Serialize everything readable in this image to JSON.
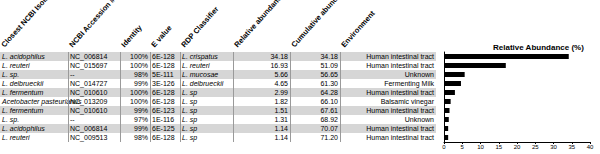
{
  "table": {
    "header": [
      "Closest NCBI Isolate",
      "NCBI Accession #",
      "Identity",
      "E value",
      "RDP Classifier",
      "Relative abundance",
      "Cumulative abundance",
      "Environment"
    ],
    "rows": [
      [
        "L. acidophilus",
        "NC_006814",
        "100%",
        "6E-128",
        "L. crispatus",
        "34.18",
        "34.18",
        "Human intestinal tract"
      ],
      [
        "L. reuteri",
        "NC_015697",
        "100%",
        "6E-128",
        "L. reuteri",
        "16.93",
        "51.09",
        "Human intestinal tract"
      ],
      [
        "L. sp.",
        "--",
        "98%",
        "5E-111",
        "L. mucosae",
        "5.66",
        "56.65",
        "Unknown"
      ],
      [
        "L. delbrueckii",
        "NC_014727",
        "99%",
        "3E-126",
        "L. delbrueckii",
        "4.65",
        "61.30",
        "Fermenting Milk"
      ],
      [
        "L. fermentum",
        "NC_010610",
        "100%",
        "6E-128",
        "L. sp",
        "2.99",
        "64.28",
        "Human intestinal tract"
      ],
      [
        "Acetobacter pasteurianus",
        "NC_013209",
        "100%",
        "6E-128",
        "L. sp",
        "1.82",
        "66.10",
        "Balsamic vinegar"
      ],
      [
        "L. fermentum",
        "NC_010610",
        "99%",
        "6E-123",
        "L. sp",
        "1.51",
        "67.61",
        "Human intestinal tract"
      ],
      [
        "L. sp.",
        "--",
        "97%",
        "1E-116",
        "L. sp",
        "1.31",
        "68.92",
        "Unknown"
      ],
      [
        "L. acidophilus",
        "NC_006814",
        "99%",
        "6E-125",
        "L. sp",
        "1.14",
        "70.07",
        "Human intestinal tract"
      ],
      [
        "L. reuteri",
        "NC_009513",
        "98%",
        "6E-128",
        "L. sp",
        "1.14",
        "71.20",
        "Human intestinal tract"
      ]
    ]
  },
  "chart_data": {
    "type": "bar",
    "title": "Relative Abundance (%)",
    "orientation": "horizontal",
    "categories": [
      null,
      null,
      null,
      null,
      null,
      null,
      null,
      null,
      null,
      null
    ],
    "values": [
      34.18,
      16.93,
      5.66,
      4.65,
      2.99,
      1.82,
      1.51,
      1.31,
      1.14,
      1.14
    ],
    "color": "#000000",
    "xlim": [
      0,
      40
    ],
    "xticks": [
      0,
      5,
      10,
      15,
      20,
      25,
      30,
      35,
      40
    ],
    "grid": false,
    "tick_labels": "x"
  }
}
